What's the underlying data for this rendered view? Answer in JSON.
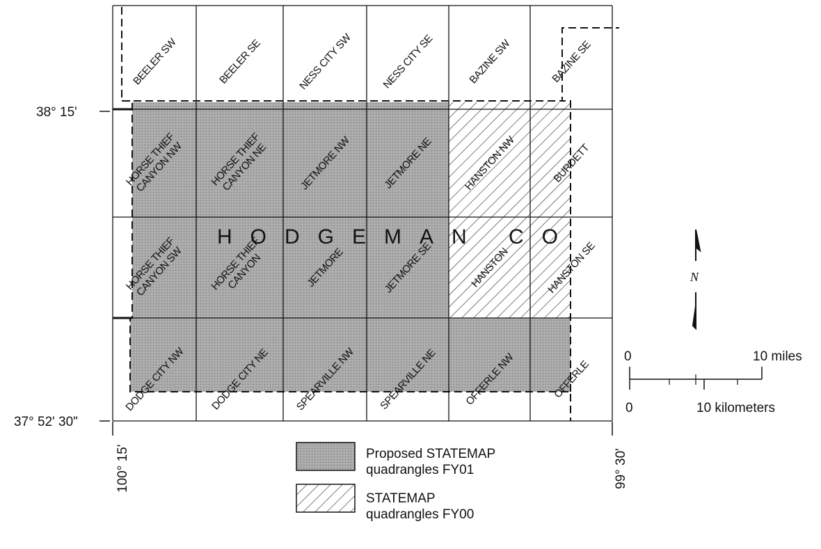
{
  "map": {
    "county_label": "HODGEMAN CO",
    "quadrangles": [
      {
        "row": 0,
        "col": 0,
        "lines": [
          "BEELER SW"
        ],
        "status": "none"
      },
      {
        "row": 0,
        "col": 1,
        "lines": [
          "BEELER SE"
        ],
        "status": "none"
      },
      {
        "row": 0,
        "col": 2,
        "lines": [
          "NESS CITY SW"
        ],
        "status": "none"
      },
      {
        "row": 0,
        "col": 3,
        "lines": [
          "NESS CITY SE"
        ],
        "status": "none"
      },
      {
        "row": 0,
        "col": 4,
        "lines": [
          "BAZINE SW"
        ],
        "status": "none"
      },
      {
        "row": 0,
        "col": 5,
        "lines": [
          "BAZINE SE"
        ],
        "status": "none"
      },
      {
        "row": 1,
        "col": 0,
        "lines": [
          "HORSE THIEF",
          "CANYON NW"
        ],
        "status": "proposed_fy01"
      },
      {
        "row": 1,
        "col": 1,
        "lines": [
          "HORSE THIEF",
          "CANYON NE"
        ],
        "status": "proposed_fy01"
      },
      {
        "row": 1,
        "col": 2,
        "lines": [
          "JETMORE NW"
        ],
        "status": "proposed_fy01"
      },
      {
        "row": 1,
        "col": 3,
        "lines": [
          "JETMORE NE"
        ],
        "status": "proposed_fy01"
      },
      {
        "row": 1,
        "col": 4,
        "lines": [
          "HANSTON NW"
        ],
        "status": "statemap_fy00"
      },
      {
        "row": 1,
        "col": 5,
        "lines": [
          "BURDETT"
        ],
        "status": "statemap_fy00"
      },
      {
        "row": 2,
        "col": 0,
        "lines": [
          "HORSE THIEF",
          "CANYON SW"
        ],
        "status": "proposed_fy01"
      },
      {
        "row": 2,
        "col": 1,
        "lines": [
          "HORSE THIEF",
          "CANYON"
        ],
        "status": "proposed_fy01"
      },
      {
        "row": 2,
        "col": 2,
        "lines": [
          "JETMORE"
        ],
        "status": "proposed_fy01"
      },
      {
        "row": 2,
        "col": 3,
        "lines": [
          "JETMORE SE"
        ],
        "status": "proposed_fy01"
      },
      {
        "row": 2,
        "col": 4,
        "lines": [
          "HANSTON"
        ],
        "status": "statemap_fy00"
      },
      {
        "row": 2,
        "col": 5,
        "lines": [
          "HANSTON SE"
        ],
        "status": "statemap_fy00"
      },
      {
        "row": 3,
        "col": 0,
        "lines": [
          "DODGE CITY NW"
        ],
        "status": "proposed_fy01"
      },
      {
        "row": 3,
        "col": 1,
        "lines": [
          "DODGE CITY NE"
        ],
        "status": "proposed_fy01"
      },
      {
        "row": 3,
        "col": 2,
        "lines": [
          "SPEARVILLE NW"
        ],
        "status": "proposed_fy01"
      },
      {
        "row": 3,
        "col": 3,
        "lines": [
          "SPEARVILLE NE"
        ],
        "status": "proposed_fy01"
      },
      {
        "row": 3,
        "col": 4,
        "lines": [
          "OFFERLE NW"
        ],
        "status": "proposed_fy01"
      },
      {
        "row": 3,
        "col": 5,
        "lines": [
          "OFFERLE"
        ],
        "status": "proposed_fy01"
      }
    ],
    "latitude_labels": [
      {
        "text": "38° 15'",
        "row_boundary": 1
      },
      {
        "text": "37° 52' 30\"",
        "row_boundary": 4
      }
    ],
    "longitude_labels": [
      {
        "text": "100° 15'",
        "side": "west"
      },
      {
        "text": "99° 30'",
        "side": "east"
      }
    ]
  },
  "north_arrow": {
    "label": "N"
  },
  "scale_bar": {
    "miles_zero": "0",
    "miles_label": "10 miles",
    "km_zero": "0",
    "km_label": "10 kilometers"
  },
  "legend": {
    "items": [
      {
        "key": "proposed_fy01",
        "lines": [
          "Proposed STATEMAP",
          "quadrangles FY01"
        ]
      },
      {
        "key": "statemap_fy00",
        "lines": [
          "STATEMAP",
          "quadrangles FY00"
        ]
      }
    ]
  },
  "colors": {
    "proposed_fill": "#a9a9a9",
    "hatch": "#333333",
    "line": "#111111"
  }
}
